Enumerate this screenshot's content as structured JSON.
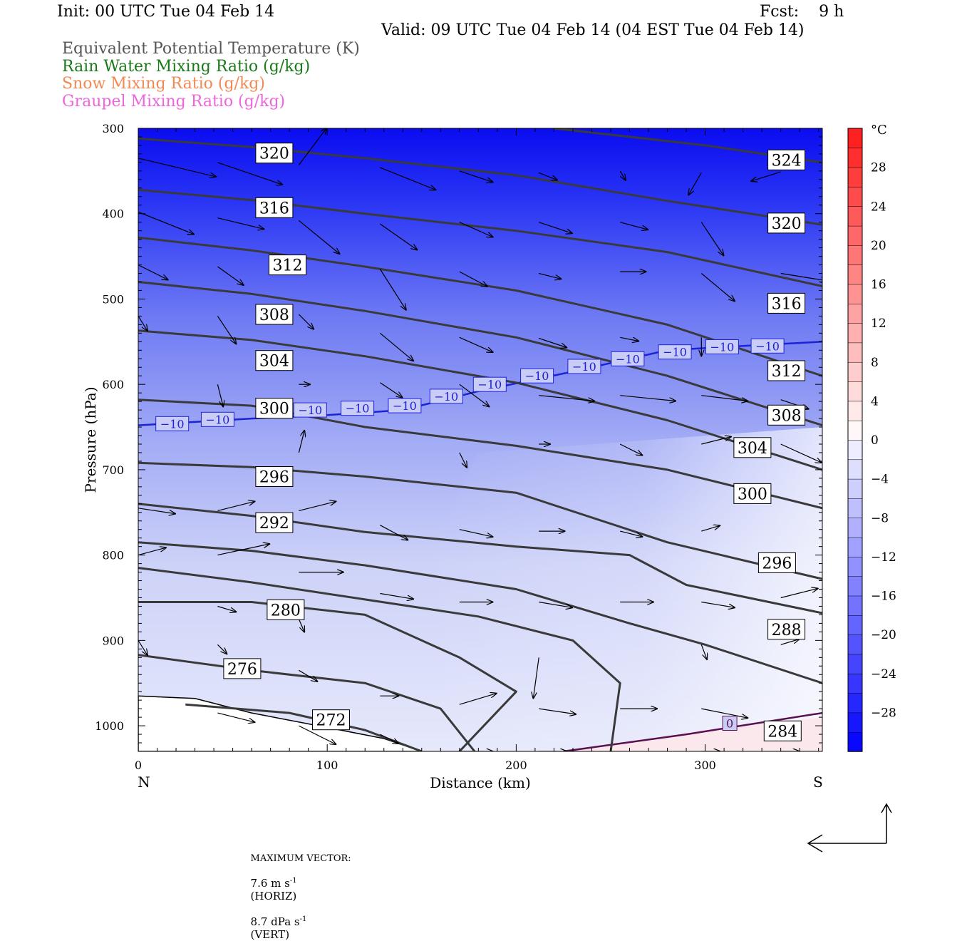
{
  "header": {
    "init": "Init: 00 UTC Tue 04 Feb 14",
    "fcst": "Fcst:    9 h",
    "valid": "Valid: 09 UTC Tue 04 Feb 14 (04 EST Tue 04 Feb 14)",
    "fields": [
      {
        "text": "Equivalent Potential Temperature (K)",
        "color": "#555555"
      },
      {
        "text": "Rain Water Mixing Ratio (g/kg)",
        "color": "#1a7a1a"
      },
      {
        "text": "Snow Mixing Ratio (g/kg)",
        "color": "#f08a55"
      },
      {
        "text": "Graupel Mixing Ratio (g/kg)",
        "color": "#ee66dd"
      }
    ]
  },
  "chart_data": {
    "type": "cross-section",
    "xlabel": "Distance (km)",
    "ylabel": "Pressure (hPa)",
    "x_ticks": [
      0,
      100,
      200,
      300
    ],
    "y_ticks": [
      300,
      400,
      500,
      600,
      700,
      800,
      900,
      1000
    ],
    "xlim": [
      0,
      362
    ],
    "ylim": [
      1030,
      300
    ],
    "end_labels": {
      "left": "N",
      "right": "S"
    },
    "colorbar": {
      "unit": "°C",
      "ticks": [
        28,
        24,
        20,
        16,
        12,
        8,
        4,
        0,
        -4,
        -8,
        -12,
        -16,
        -20,
        -24,
        -28
      ],
      "range": [
        -32,
        32
      ]
    },
    "theta_e_contours": [
      {
        "value": 324,
        "points": [
          [
            220,
            300
          ],
          [
            300,
            320
          ],
          [
            362,
            340
          ]
        ]
      },
      {
        "value": 320,
        "points": [
          [
            0,
            312
          ],
          [
            60,
            322
          ],
          [
            120,
            335
          ],
          [
            200,
            355
          ],
          [
            280,
            385
          ],
          [
            362,
            413
          ]
        ]
      },
      {
        "value": 316,
        "points": [
          [
            0,
            372
          ],
          [
            60,
            384
          ],
          [
            120,
            400
          ],
          [
            200,
            420
          ],
          [
            280,
            445
          ],
          [
            362,
            485
          ]
        ]
      },
      {
        "value": 312,
        "points": [
          [
            0,
            428
          ],
          [
            60,
            443
          ],
          [
            120,
            462
          ],
          [
            200,
            490
          ],
          [
            280,
            530
          ],
          [
            362,
            590
          ]
        ]
      },
      {
        "value": 308,
        "points": [
          [
            0,
            480
          ],
          [
            60,
            494
          ],
          [
            120,
            514
          ],
          [
            200,
            545
          ],
          [
            280,
            590
          ],
          [
            362,
            648
          ]
        ]
      },
      {
        "value": 304,
        "points": [
          [
            0,
            537
          ],
          [
            60,
            548
          ],
          [
            120,
            567
          ],
          [
            200,
            598
          ],
          [
            280,
            642
          ],
          [
            362,
            700
          ]
        ]
      },
      {
        "value": 300,
        "points": [
          [
            0,
            618
          ],
          [
            60,
            625
          ],
          [
            120,
            650
          ],
          [
            200,
            672
          ],
          [
            280,
            700
          ],
          [
            362,
            745
          ]
        ]
      },
      {
        "value": 296,
        "points": [
          [
            0,
            692
          ],
          [
            60,
            697
          ],
          [
            120,
            708
          ],
          [
            200,
            727
          ],
          [
            280,
            785
          ],
          [
            362,
            828
          ]
        ]
      },
      {
        "value": 292,
        "points": [
          [
            0,
            740
          ],
          [
            60,
            754
          ],
          [
            120,
            773
          ],
          [
            200,
            790
          ],
          [
            260,
            800
          ],
          [
            290,
            835
          ],
          [
            362,
            868
          ]
        ]
      },
      {
        "value": 288,
        "points": [
          [
            0,
            785
          ],
          [
            60,
            795
          ],
          [
            120,
            812
          ],
          [
            200,
            840
          ],
          [
            260,
            880
          ],
          [
            300,
            905
          ],
          [
            362,
            950
          ]
        ]
      },
      {
        "value": 284,
        "points": [
          [
            0,
            815
          ],
          [
            60,
            832
          ],
          [
            120,
            852
          ],
          [
            180,
            872
          ],
          [
            230,
            900
          ],
          [
            255,
            950
          ],
          [
            250,
            1030
          ]
        ]
      },
      {
        "value": 280,
        "points": [
          [
            0,
            855
          ],
          [
            60,
            855
          ],
          [
            120,
            870
          ],
          [
            170,
            920
          ],
          [
            200,
            960
          ],
          [
            170,
            1030
          ]
        ]
      },
      {
        "value": 276,
        "points": [
          [
            0,
            917
          ],
          [
            60,
            935
          ],
          [
            120,
            950
          ],
          [
            160,
            980
          ],
          [
            178,
            1030
          ]
        ]
      },
      {
        "value": 272,
        "points": [
          [
            25,
            975
          ],
          [
            80,
            985
          ],
          [
            120,
            1005
          ],
          [
            150,
            1030
          ]
        ]
      }
    ],
    "contour_labels": [
      {
        "value": "324",
        "x": 343,
        "p": 337
      },
      {
        "value": "320",
        "x": 72,
        "p": 329
      },
      {
        "value": "320",
        "x": 343,
        "p": 411
      },
      {
        "value": "316",
        "x": 72,
        "p": 393
      },
      {
        "value": "316",
        "x": 343,
        "p": 505
      },
      {
        "value": "312",
        "x": 79,
        "p": 460
      },
      {
        "value": "312",
        "x": 343,
        "p": 584
      },
      {
        "value": "308",
        "x": 72,
        "p": 518
      },
      {
        "value": "308",
        "x": 343,
        "p": 636
      },
      {
        "value": "304",
        "x": 72,
        "p": 572
      },
      {
        "value": "304",
        "x": 325,
        "p": 674
      },
      {
        "value": "300",
        "x": 72,
        "p": 628
      },
      {
        "value": "300",
        "x": 325,
        "p": 728
      },
      {
        "value": "296",
        "x": 72,
        "p": 708
      },
      {
        "value": "296",
        "x": 338,
        "p": 809
      },
      {
        "value": "292",
        "x": 72,
        "p": 762
      },
      {
        "value": "288",
        "x": 343,
        "p": 887
      },
      {
        "value": "284",
        "x": 341,
        "p": 1006
      },
      {
        "value": "280",
        "x": 78,
        "p": 864
      },
      {
        "value": "276",
        "x": 55,
        "p": 933
      },
      {
        "value": "272",
        "x": 102,
        "p": 993
      }
    ],
    "isotherms": [
      {
        "value": -10,
        "color": "#1d22d8",
        "points": [
          [
            0,
            648
          ],
          [
            60,
            640
          ],
          [
            100,
            636
          ],
          [
            140,
            630
          ],
          [
            180,
            608
          ],
          [
            230,
            585
          ],
          [
            280,
            560
          ],
          [
            320,
            555
          ],
          [
            362,
            550
          ]
        ]
      },
      {
        "value": 0,
        "color": "#5a1050",
        "points": [
          [
            225,
            1030
          ],
          [
            290,
            1010
          ],
          [
            362,
            985
          ]
        ]
      }
    ],
    "isotherm_labels": [
      {
        "value": "−10",
        "x": 18,
        "p": 646
      },
      {
        "value": "−10",
        "x": 42,
        "p": 641
      },
      {
        "value": "−10",
        "x": 91,
        "p": 630
      },
      {
        "value": "−10",
        "x": 116,
        "p": 628
      },
      {
        "value": "−10",
        "x": 141,
        "p": 625
      },
      {
        "value": "−10",
        "x": 163,
        "p": 614
      },
      {
        "value": "−10",
        "x": 186,
        "p": 600
      },
      {
        "value": "−10",
        "x": 211,
        "p": 590
      },
      {
        "value": "−10",
        "x": 236,
        "p": 579
      },
      {
        "value": "−10",
        "x": 259,
        "p": 570
      },
      {
        "value": "−10",
        "x": 284,
        "p": 562
      },
      {
        "value": "−10",
        "x": 309,
        "p": 556
      },
      {
        "value": "−10",
        "x": 333,
        "p": 555
      },
      {
        "value": "0",
        "x": 313,
        "p": 997
      }
    ],
    "vectors": [
      [
        0,
        335,
        42,
        10
      ],
      [
        42,
        340,
        35,
        12
      ],
      [
        85,
        343,
        15,
        -20
      ],
      [
        128,
        346,
        30,
        12
      ],
      [
        170,
        350,
        18,
        6
      ],
      [
        212,
        352,
        10,
        4
      ],
      [
        255,
        350,
        3,
        5
      ],
      [
        298,
        352,
        -7,
        12
      ],
      [
        340,
        351,
        -16,
        5
      ],
      [
        0,
        398,
        30,
        12
      ],
      [
        42,
        405,
        25,
        6
      ],
      [
        85,
        408,
        22,
        18
      ],
      [
        128,
        412,
        20,
        14
      ],
      [
        170,
        410,
        18,
        8
      ],
      [
        212,
        410,
        18,
        6
      ],
      [
        255,
        410,
        15,
        4
      ],
      [
        298,
        410,
        12,
        18
      ],
      [
        0,
        460,
        16,
        8
      ],
      [
        42,
        462,
        14,
        10
      ],
      [
        128,
        465,
        14,
        22
      ],
      [
        170,
        468,
        15,
        8
      ],
      [
        212,
        470,
        12,
        3
      ],
      [
        255,
        468,
        14,
        0
      ],
      [
        298,
        470,
        18,
        15
      ],
      [
        340,
        470,
        25,
        4
      ],
      [
        0,
        520,
        5,
        8
      ],
      [
        42,
        520,
        10,
        15
      ],
      [
        85,
        518,
        8,
        8
      ],
      [
        128,
        540,
        18,
        15
      ],
      [
        170,
        545,
        18,
        8
      ],
      [
        212,
        546,
        15,
        5
      ],
      [
        255,
        545,
        10,
        2
      ],
      [
        298,
        545,
        0,
        10
      ],
      [
        340,
        545,
        0,
        0
      ],
      [
        42,
        600,
        3,
        12
      ],
      [
        85,
        600,
        6,
        0
      ],
      [
        128,
        598,
        12,
        8
      ],
      [
        170,
        600,
        16,
        12
      ],
      [
        212,
        613,
        30,
        3
      ],
      [
        255,
        613,
        30,
        3
      ],
      [
        298,
        613,
        25,
        3
      ],
      [
        340,
        618,
        15,
        5
      ],
      [
        42,
        680,
        0,
        0
      ],
      [
        85,
        680,
        3,
        -12
      ],
      [
        128,
        680,
        0,
        0
      ],
      [
        170,
        680,
        4,
        8
      ],
      [
        212,
        670,
        6,
        0
      ],
      [
        255,
        670,
        12,
        6
      ],
      [
        298,
        670,
        16,
        -4
      ],
      [
        340,
        670,
        22,
        10
      ],
      [
        0,
        745,
        20,
        3
      ],
      [
        42,
        748,
        20,
        -5
      ],
      [
        85,
        748,
        20,
        -5
      ],
      [
        128,
        765,
        15,
        8
      ],
      [
        170,
        770,
        18,
        4
      ],
      [
        212,
        772,
        14,
        0
      ],
      [
        255,
        772,
        12,
        3
      ],
      [
        298,
        772,
        10,
        -3
      ],
      [
        340,
        772,
        0,
        0
      ],
      [
        0,
        800,
        15,
        -4
      ],
      [
        42,
        800,
        28,
        -6
      ],
      [
        85,
        820,
        24,
        0
      ],
      [
        128,
        845,
        18,
        3
      ],
      [
        170,
        855,
        18,
        0
      ],
      [
        212,
        855,
        18,
        3
      ],
      [
        255,
        855,
        18,
        0
      ],
      [
        298,
        855,
        18,
        3
      ],
      [
        340,
        850,
        20,
        -5
      ],
      [
        0,
        845,
        0,
        0
      ],
      [
        42,
        860,
        10,
        3
      ],
      [
        85,
        875,
        3,
        7
      ],
      [
        128,
        900,
        0,
        0
      ],
      [
        170,
        905,
        0,
        0
      ],
      [
        212,
        920,
        -3,
        22
      ],
      [
        255,
        905,
        0,
        0
      ],
      [
        298,
        905,
        3,
        8
      ],
      [
        340,
        905,
        10,
        -3
      ],
      [
        0,
        900,
        5,
        8
      ],
      [
        42,
        905,
        5,
        5
      ],
      [
        85,
        935,
        10,
        6
      ],
      [
        128,
        965,
        10,
        0
      ],
      [
        170,
        975,
        20,
        -6
      ],
      [
        212,
        980,
        20,
        3
      ],
      [
        255,
        980,
        20,
        0
      ],
      [
        298,
        980,
        25,
        5
      ],
      [
        340,
        980,
        0,
        0
      ],
      [
        42,
        985,
        20,
        5
      ],
      [
        85,
        1000,
        20,
        10
      ],
      [
        128,
        1010,
        10,
        5
      ],
      [
        170,
        1030,
        18,
        0
      ],
      [
        212,
        1030,
        15,
        0
      ],
      [
        255,
        1030,
        12,
        3
      ],
      [
        298,
        1030,
        10,
        0
      ],
      [
        340,
        1030,
        10,
        0
      ]
    ],
    "max_vector": {
      "label": "MAXIMUM VECTOR:",
      "horiz": "7.6 m s",
      "horiz_unit": "(HORIZ)",
      "vert": "8.7 dPa s",
      "vert_unit": "(VERT)",
      "sup": "-1"
    }
  }
}
